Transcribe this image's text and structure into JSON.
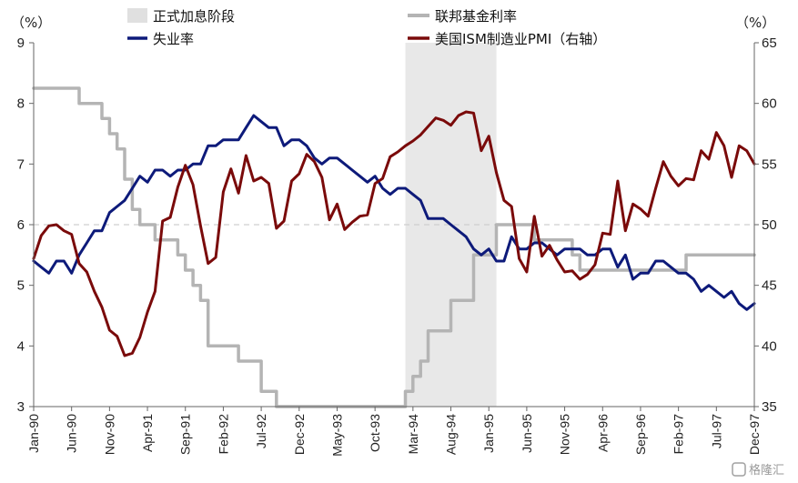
{
  "chart_data": {
    "type": "line",
    "left_axis": {
      "unit": "（%）",
      "ylim": [
        3,
        9
      ],
      "ticks": [
        "3",
        "4",
        "5",
        "6",
        "7",
        "8",
        "9"
      ]
    },
    "right_axis": {
      "unit": "（%）",
      "ylim": [
        35,
        65
      ],
      "ticks": [
        "35",
        "40",
        "45",
        "50",
        "55",
        "60",
        "65"
      ]
    },
    "x_range": [
      "1990-01",
      "1997-12"
    ],
    "x_ticks": [
      "Jan-90",
      "Jun-90",
      "Nov-90",
      "Apr-91",
      "Sep-91",
      "Feb-92",
      "Jul-92",
      "Dec-92",
      "May-93",
      "Oct-93",
      "Mar-94",
      "Aug-94",
      "Jan-95",
      "Jun-95",
      "Nov-95",
      "Apr-96",
      "Sep-96",
      "Feb-97",
      "Jul-97",
      "Dec-97"
    ],
    "reference_line": {
      "axis": "right",
      "value": 50,
      "style": "dashed"
    },
    "shaded_region": {
      "label": "正式加息阶段",
      "x_start": "1994-02",
      "x_end": "1995-02",
      "color": "#e8e8e8"
    },
    "legend": {
      "placement": "top"
    },
    "series": [
      {
        "name": "失业率",
        "axis": "left",
        "color": "#0d1a7a",
        "points": [
          [
            "1990-01",
            5.4
          ],
          [
            "1990-02",
            5.3
          ],
          [
            "1990-03",
            5.2
          ],
          [
            "1990-04",
            5.4
          ],
          [
            "1990-05",
            5.4
          ],
          [
            "1990-06",
            5.2
          ],
          [
            "1990-07",
            5.5
          ],
          [
            "1990-08",
            5.7
          ],
          [
            "1990-09",
            5.9
          ],
          [
            "1990-10",
            5.9
          ],
          [
            "1990-11",
            6.2
          ],
          [
            "1990-12",
            6.3
          ],
          [
            "1991-01",
            6.4
          ],
          [
            "1991-02",
            6.6
          ],
          [
            "1991-03",
            6.8
          ],
          [
            "1991-04",
            6.7
          ],
          [
            "1991-05",
            6.9
          ],
          [
            "1991-06",
            6.9
          ],
          [
            "1991-07",
            6.8
          ],
          [
            "1991-08",
            6.9
          ],
          [
            "1991-09",
            6.9
          ],
          [
            "1991-10",
            7.0
          ],
          [
            "1991-11",
            7.0
          ],
          [
            "1991-12",
            7.3
          ],
          [
            "1992-01",
            7.3
          ],
          [
            "1992-02",
            7.4
          ],
          [
            "1992-03",
            7.4
          ],
          [
            "1992-04",
            7.4
          ],
          [
            "1992-05",
            7.6
          ],
          [
            "1992-06",
            7.8
          ],
          [
            "1992-07",
            7.7
          ],
          [
            "1992-08",
            7.6
          ],
          [
            "1992-09",
            7.6
          ],
          [
            "1992-10",
            7.3
          ],
          [
            "1992-11",
            7.4
          ],
          [
            "1992-12",
            7.4
          ],
          [
            "1993-01",
            7.3
          ],
          [
            "1993-02",
            7.1
          ],
          [
            "1993-03",
            7.0
          ],
          [
            "1993-04",
            7.1
          ],
          [
            "1993-05",
            7.1
          ],
          [
            "1993-06",
            7.0
          ],
          [
            "1993-07",
            6.9
          ],
          [
            "1993-08",
            6.8
          ],
          [
            "1993-09",
            6.7
          ],
          [
            "1993-10",
            6.8
          ],
          [
            "1993-11",
            6.6
          ],
          [
            "1993-12",
            6.5
          ],
          [
            "1994-01",
            6.6
          ],
          [
            "1994-02",
            6.6
          ],
          [
            "1994-03",
            6.5
          ],
          [
            "1994-04",
            6.4
          ],
          [
            "1994-05",
            6.1
          ],
          [
            "1994-06",
            6.1
          ],
          [
            "1994-07",
            6.1
          ],
          [
            "1994-08",
            6.0
          ],
          [
            "1994-09",
            5.9
          ],
          [
            "1994-10",
            5.8
          ],
          [
            "1994-11",
            5.6
          ],
          [
            "1994-12",
            5.5
          ],
          [
            "1995-01",
            5.6
          ],
          [
            "1995-02",
            5.4
          ],
          [
            "1995-03",
            5.4
          ],
          [
            "1995-04",
            5.8
          ],
          [
            "1995-05",
            5.6
          ],
          [
            "1995-06",
            5.6
          ],
          [
            "1995-07",
            5.7
          ],
          [
            "1995-08",
            5.7
          ],
          [
            "1995-09",
            5.6
          ],
          [
            "1995-10",
            5.5
          ],
          [
            "1995-11",
            5.6
          ],
          [
            "1995-12",
            5.6
          ],
          [
            "1996-01",
            5.6
          ],
          [
            "1996-02",
            5.5
          ],
          [
            "1996-03",
            5.5
          ],
          [
            "1996-04",
            5.6
          ],
          [
            "1996-05",
            5.6
          ],
          [
            "1996-06",
            5.3
          ],
          [
            "1996-07",
            5.5
          ],
          [
            "1996-08",
            5.1
          ],
          [
            "1996-09",
            5.2
          ],
          [
            "1996-10",
            5.2
          ],
          [
            "1996-11",
            5.4
          ],
          [
            "1996-12",
            5.4
          ],
          [
            "1997-01",
            5.3
          ],
          [
            "1997-02",
            5.2
          ],
          [
            "1997-03",
            5.2
          ],
          [
            "1997-04",
            5.1
          ],
          [
            "1997-05",
            4.9
          ],
          [
            "1997-06",
            5.0
          ],
          [
            "1997-07",
            4.9
          ],
          [
            "1997-08",
            4.8
          ],
          [
            "1997-09",
            4.9
          ],
          [
            "1997-10",
            4.7
          ],
          [
            "1997-11",
            4.6
          ],
          [
            "1997-12",
            4.7
          ]
        ]
      },
      {
        "name": "联邦基金利率",
        "axis": "left",
        "color": "#b4b4b4",
        "points": [
          [
            "1990-01",
            8.25
          ],
          [
            "1990-07",
            8.0
          ],
          [
            "1990-10",
            7.75
          ],
          [
            "1990-11",
            7.5
          ],
          [
            "1990-12",
            7.25
          ],
          [
            "1991-01",
            6.75
          ],
          [
            "1991-02",
            6.25
          ],
          [
            "1991-03",
            6.0
          ],
          [
            "1991-05",
            5.75
          ],
          [
            "1991-08",
            5.5
          ],
          [
            "1991-09",
            5.25
          ],
          [
            "1991-10",
            5.0
          ],
          [
            "1991-11",
            4.75
          ],
          [
            "1991-12",
            4.0
          ],
          [
            "1992-04",
            3.75
          ],
          [
            "1992-07",
            3.25
          ],
          [
            "1992-09",
            3.0
          ],
          [
            "1994-02",
            3.25
          ],
          [
            "1994-03",
            3.5
          ],
          [
            "1994-04",
            3.75
          ],
          [
            "1994-05",
            4.25
          ],
          [
            "1994-08",
            4.75
          ],
          [
            "1994-11",
            5.5
          ],
          [
            "1995-02",
            6.0
          ],
          [
            "1995-07",
            5.75
          ],
          [
            "1995-12",
            5.5
          ],
          [
            "1996-01",
            5.25
          ],
          [
            "1997-03",
            5.5
          ],
          [
            "1997-12",
            5.5
          ]
        ]
      },
      {
        "name": "美国ISM制造业PMI（右轴）",
        "axis": "right",
        "color": "#7a0a0a",
        "points": [
          [
            "1990-01",
            47.2
          ],
          [
            "1990-02",
            49.1
          ],
          [
            "1990-03",
            49.9
          ],
          [
            "1990-04",
            50.0
          ],
          [
            "1990-05",
            49.5
          ],
          [
            "1990-06",
            49.2
          ],
          [
            "1990-07",
            46.8
          ],
          [
            "1990-08",
            46.1
          ],
          [
            "1990-09",
            44.5
          ],
          [
            "1990-10",
            43.2
          ],
          [
            "1990-11",
            41.3
          ],
          [
            "1990-12",
            40.8
          ],
          [
            "1991-01",
            39.2
          ],
          [
            "1991-02",
            39.4
          ],
          [
            "1991-03",
            40.7
          ],
          [
            "1991-04",
            42.8
          ],
          [
            "1991-05",
            44.5
          ],
          [
            "1991-06",
            50.3
          ],
          [
            "1991-07",
            50.6
          ],
          [
            "1991-08",
            53.1
          ],
          [
            "1991-09",
            54.9
          ],
          [
            "1991-10",
            53.3
          ],
          [
            "1991-11",
            49.9
          ],
          [
            "1991-12",
            46.8
          ],
          [
            "1992-01",
            47.3
          ],
          [
            "1992-02",
            52.7
          ],
          [
            "1992-03",
            54.6
          ],
          [
            "1992-04",
            52.6
          ],
          [
            "1992-05",
            55.7
          ],
          [
            "1992-06",
            53.6
          ],
          [
            "1992-07",
            53.9
          ],
          [
            "1992-08",
            53.4
          ],
          [
            "1992-09",
            49.7
          ],
          [
            "1992-10",
            50.3
          ],
          [
            "1992-11",
            53.6
          ],
          [
            "1992-12",
            54.2
          ],
          [
            "1993-01",
            55.8
          ],
          [
            "1993-02",
            55.2
          ],
          [
            "1993-03",
            53.9
          ],
          [
            "1993-04",
            50.4
          ],
          [
            "1993-05",
            51.7
          ],
          [
            "1993-06",
            49.6
          ],
          [
            "1993-07",
            50.2
          ],
          [
            "1993-08",
            50.7
          ],
          [
            "1993-09",
            50.8
          ],
          [
            "1993-10",
            53.4
          ],
          [
            "1993-11",
            53.8
          ],
          [
            "1993-12",
            55.6
          ],
          [
            "1994-01",
            56.0
          ],
          [
            "1994-02",
            56.5
          ],
          [
            "1994-03",
            56.9
          ],
          [
            "1994-04",
            57.4
          ],
          [
            "1994-05",
            58.1
          ],
          [
            "1994-06",
            58.8
          ],
          [
            "1994-07",
            58.6
          ],
          [
            "1994-08",
            58.2
          ],
          [
            "1994-09",
            59.0
          ],
          [
            "1994-10",
            59.3
          ],
          [
            "1994-11",
            59.2
          ],
          [
            "1994-12",
            56.1
          ],
          [
            "1995-01",
            57.3
          ],
          [
            "1995-02",
            54.3
          ],
          [
            "1995-03",
            52.0
          ],
          [
            "1995-04",
            51.5
          ],
          [
            "1995-05",
            47.2
          ],
          [
            "1995-06",
            46.1
          ],
          [
            "1995-07",
            50.7
          ],
          [
            "1995-08",
            47.4
          ],
          [
            "1995-09",
            48.3
          ],
          [
            "1995-10",
            47.1
          ],
          [
            "1995-11",
            46.1
          ],
          [
            "1995-12",
            46.2
          ],
          [
            "1996-01",
            45.5
          ],
          [
            "1996-02",
            45.9
          ],
          [
            "1996-03",
            46.7
          ],
          [
            "1996-04",
            49.3
          ],
          [
            "1996-05",
            49.2
          ],
          [
            "1996-06",
            53.6
          ],
          [
            "1996-07",
            49.5
          ],
          [
            "1996-08",
            51.7
          ],
          [
            "1996-09",
            51.3
          ],
          [
            "1996-10",
            50.7
          ],
          [
            "1996-11",
            53.0
          ],
          [
            "1996-12",
            55.2
          ],
          [
            "1997-01",
            54.0
          ],
          [
            "1997-02",
            53.2
          ],
          [
            "1997-03",
            53.8
          ],
          [
            "1997-04",
            53.7
          ],
          [
            "1997-05",
            56.1
          ],
          [
            "1997-06",
            55.4
          ],
          [
            "1997-07",
            57.6
          ],
          [
            "1997-08",
            56.5
          ],
          [
            "1997-09",
            53.9
          ],
          [
            "1997-10",
            56.5
          ],
          [
            "1997-11",
            56.1
          ],
          [
            "1997-12",
            55.0
          ]
        ]
      }
    ]
  },
  "watermark": "格隆汇"
}
